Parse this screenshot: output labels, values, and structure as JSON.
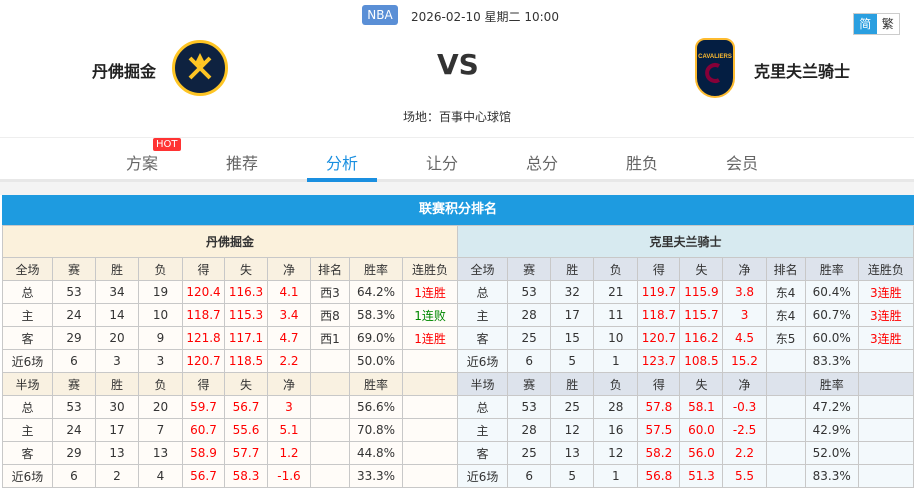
{
  "header": {
    "league": "NBA",
    "datetime": "2026-02-10 星期二 10:00",
    "lang": [
      "简",
      "繁"
    ],
    "home": "丹佛掘金",
    "away": "克里夫兰骑士",
    "vs": "VS",
    "venue": "场地：百事中心球馆"
  },
  "nav": {
    "tabs": [
      "方案",
      "推荐",
      "分析",
      "让分",
      "总分",
      "胜负",
      "会员"
    ],
    "active": "分析",
    "hot_badge": "HOT"
  },
  "section_title": "联赛积分排名",
  "colors": {
    "accent": "#1e9be0",
    "win": "#ff0000",
    "loss": "#008800"
  },
  "full_headers": [
    "全场",
    "赛",
    "胜",
    "负",
    "得",
    "失",
    "净",
    "排名",
    "胜率",
    "连胜负"
  ],
  "half_headers": [
    "半场",
    "赛",
    "胜",
    "负",
    "得",
    "失",
    "净",
    "",
    "胜率",
    ""
  ],
  "teams": [
    {
      "name": "丹佛掘金",
      "full": [
        [
          "总",
          "53",
          "34",
          "19",
          "120.4",
          "116.3",
          "4.1",
          "西3",
          "64.2%",
          "1连胜"
        ],
        [
          "主",
          "24",
          "14",
          "10",
          "118.7",
          "115.3",
          "3.4",
          "西8",
          "58.3%",
          "1连败"
        ],
        [
          "客",
          "29",
          "20",
          "9",
          "121.8",
          "117.1",
          "4.7",
          "西1",
          "69.0%",
          "1连胜"
        ],
        [
          "近6场",
          "6",
          "3",
          "3",
          "120.7",
          "118.5",
          "2.2",
          "",
          "50.0%",
          ""
        ]
      ],
      "half": [
        [
          "总",
          "53",
          "30",
          "20",
          "59.7",
          "56.7",
          "3",
          "",
          "56.6%",
          ""
        ],
        [
          "主",
          "24",
          "17",
          "7",
          "60.7",
          "55.6",
          "5.1",
          "",
          "70.8%",
          ""
        ],
        [
          "客",
          "29",
          "13",
          "13",
          "58.9",
          "57.7",
          "1.2",
          "",
          "44.8%",
          ""
        ],
        [
          "近6场",
          "6",
          "2",
          "4",
          "56.7",
          "58.3",
          "-1.6",
          "",
          "33.3%",
          ""
        ]
      ]
    },
    {
      "name": "克里夫兰骑士",
      "full": [
        [
          "总",
          "53",
          "32",
          "21",
          "119.7",
          "115.9",
          "3.8",
          "东4",
          "60.4%",
          "3连胜"
        ],
        [
          "主",
          "28",
          "17",
          "11",
          "118.7",
          "115.7",
          "3",
          "东4",
          "60.7%",
          "3连胜"
        ],
        [
          "客",
          "25",
          "15",
          "10",
          "120.7",
          "116.2",
          "4.5",
          "东5",
          "60.0%",
          "3连胜"
        ],
        [
          "近6场",
          "6",
          "5",
          "1",
          "123.7",
          "108.5",
          "15.2",
          "",
          "83.3%",
          ""
        ]
      ],
      "half": [
        [
          "总",
          "53",
          "25",
          "28",
          "57.8",
          "58.1",
          "-0.3",
          "",
          "47.2%",
          ""
        ],
        [
          "主",
          "28",
          "12",
          "16",
          "57.5",
          "60.0",
          "-2.5",
          "",
          "42.9%",
          ""
        ],
        [
          "客",
          "25",
          "13",
          "12",
          "58.2",
          "56.0",
          "2.2",
          "",
          "52.0%",
          ""
        ],
        [
          "近6场",
          "6",
          "5",
          "1",
          "56.8",
          "51.3",
          "5.5",
          "",
          "83.3%",
          ""
        ]
      ]
    }
  ]
}
